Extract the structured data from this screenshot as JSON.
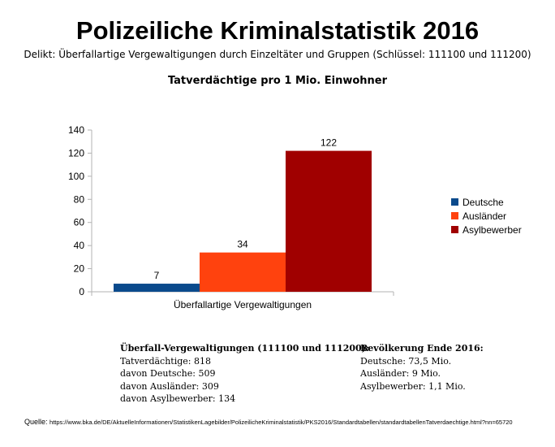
{
  "header": {
    "title": "Polizeiliche Kriminalstatistik 2016",
    "subtitle": "Delikt: Überfallartige Vergewaltigungen durch Einzeltäter und Gruppen (Schlüssel: 111100 und 111200)"
  },
  "chart_data": {
    "type": "bar",
    "title": "Tatverdächtige pro 1 Mio. Einwohner",
    "categories": [
      "Überfallartige Vergewaltigungen"
    ],
    "series": [
      {
        "name": "Deutsche",
        "values": [
          7
        ],
        "color": "#0a4a8c"
      },
      {
        "name": "Ausländer",
        "values": [
          34
        ],
        "color": "#ff420e"
      },
      {
        "name": "Asylbewerber",
        "values": [
          122
        ],
        "color": "#a00000"
      }
    ],
    "ylim": [
      0,
      140
    ],
    "yticks": [
      0,
      20,
      40,
      60,
      80,
      100,
      120,
      140
    ],
    "grid": false,
    "legend_position": "right"
  },
  "info_left": {
    "heading": "Überfall-Vergewaltigungen (111100 und 111200):",
    "lines": [
      "Tatverdächtige: 818",
      "davon Deutsche: 509",
      "davon Ausländer: 309",
      "davon Asylbewerber: 134"
    ]
  },
  "info_right": {
    "heading": "Bevölkerung Ende 2016:",
    "lines": [
      "Deutsche: 73,5 Mio.",
      "Ausländer: 9 Mio.",
      "Asylbewerber: 1,1 Mio."
    ]
  },
  "source": {
    "label": "Quelle:",
    "url": "https://www.bka.de/DE/AktuelleInformationen/StatistikenLagebilder/PolizeilicheKriminalstatistik/PKS2016/Standardtabellen/standardtabellenTatverdaechtige.html?nn=65720"
  }
}
